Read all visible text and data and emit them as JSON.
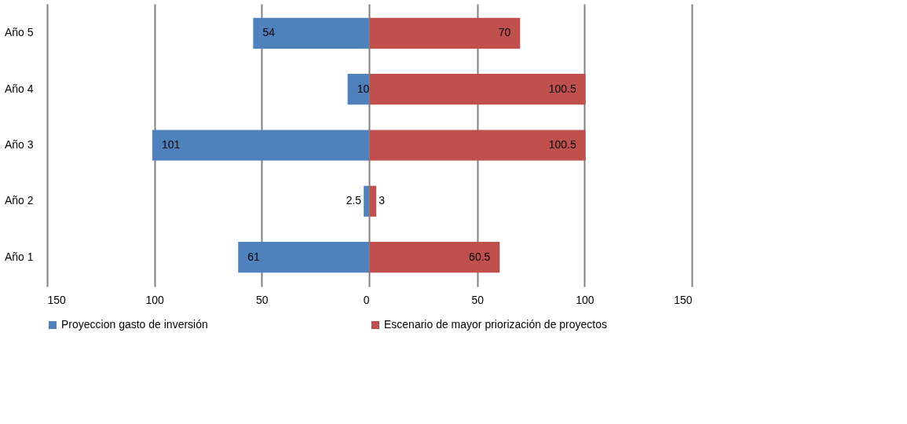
{
  "chart_data": [
    {
      "type": "bar",
      "orientation": "horizontal",
      "categories": [
        "Año 5",
        "Año 4",
        "Año 3",
        "Año 2",
        "Año 1"
      ],
      "series": [
        {
          "name": "Proyeccion gasto de inversión",
          "color": "#4f81bd",
          "values": [
            54,
            10,
            101,
            2.5,
            61
          ]
        }
      ],
      "xlim": [
        150,
        0
      ],
      "xticks": [
        150,
        100,
        50,
        0
      ],
      "grid": "x",
      "legend": "bottom",
      "data_labels": true
    },
    {
      "type": "bar",
      "orientation": "horizontal",
      "categories": [
        "Año 5",
        "Año 4",
        "Año 3",
        "Año 2",
        "Año 1"
      ],
      "series": [
        {
          "name": "Escenario de mayor priorización de proyectos",
          "color": "#c0504d",
          "values": [
            70,
            100.5,
            100.5,
            3,
            60.5
          ]
        }
      ],
      "xlim": [
        0,
        150
      ],
      "xticks": [
        50,
        100,
        150
      ],
      "grid": "x",
      "legend": "bottom",
      "data_labels": true,
      "tick_labels": "x"
    }
  ]
}
